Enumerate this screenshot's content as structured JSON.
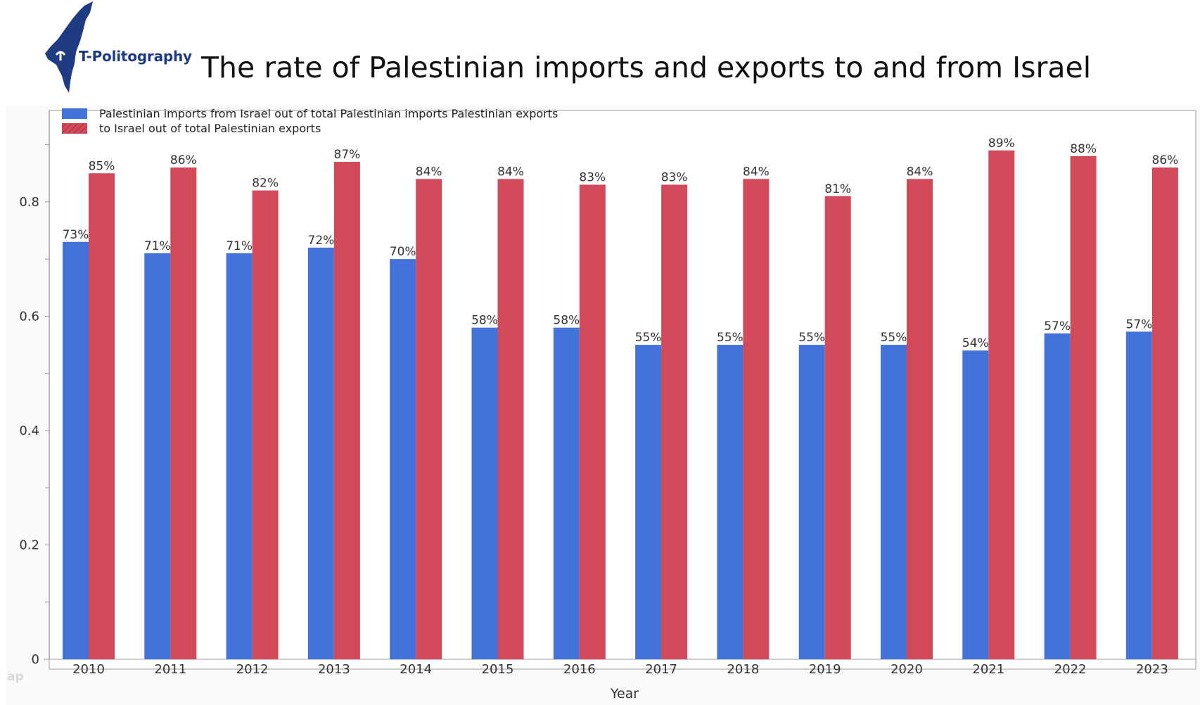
{
  "header": {
    "logo_text": "T-Politography",
    "title": "The rate of Palestinian imports and exports to and from Israel"
  },
  "colors": {
    "imports": "#4472db",
    "exports": "#d24a5a",
    "logo": "#1f3b82"
  },
  "chart_data": {
    "type": "bar",
    "title": "The rate of Palestinian imports and exports to and from Israel",
    "xlabel": "Year",
    "ylabel": "",
    "ylim": [
      0,
      0.95
    ],
    "yticks": [
      "0",
      "0.2",
      "0.4",
      "0.6",
      "0.8"
    ],
    "categories": [
      "2010",
      "2011",
      "2012",
      "2013",
      "2014",
      "2015",
      "2016",
      "2017",
      "2018",
      "2019",
      "2020",
      "2021",
      "2022",
      "2023"
    ],
    "legend_position": "top-left",
    "grid": false,
    "series": [
      {
        "name": "Palestinian imports from Israel out of total Palestinian imports",
        "values": [
          0.73,
          0.71,
          0.71,
          0.72,
          0.7,
          0.58,
          0.58,
          0.55,
          0.55,
          0.55,
          0.55,
          0.54,
          0.57,
          0.573
        ],
        "labels": [
          "73%",
          "71%",
          "71%",
          "72%",
          "70%",
          "58%",
          "58%",
          "55%",
          "55%",
          "55%",
          "55%",
          "54%",
          "57%",
          "57%"
        ]
      },
      {
        "name": "Palestinian exports to Israel out of total Palestinian exports",
        "values": [
          0.85,
          0.86,
          0.82,
          0.87,
          0.84,
          0.84,
          0.83,
          0.83,
          0.84,
          0.81,
          0.84,
          0.89,
          0.88,
          0.86
        ],
        "labels": [
          "85%",
          "86%",
          "82%",
          "87%",
          "84%",
          "84%",
          "83%",
          "83%",
          "84%",
          "81%",
          "84%",
          "89%",
          "88%",
          "86%"
        ]
      }
    ],
    "legend_lines": [
      "Palestinian imports from Israel out of total Palestinian imports Palestinian exports",
      "to Israel out of total Palestinian exports"
    ]
  }
}
